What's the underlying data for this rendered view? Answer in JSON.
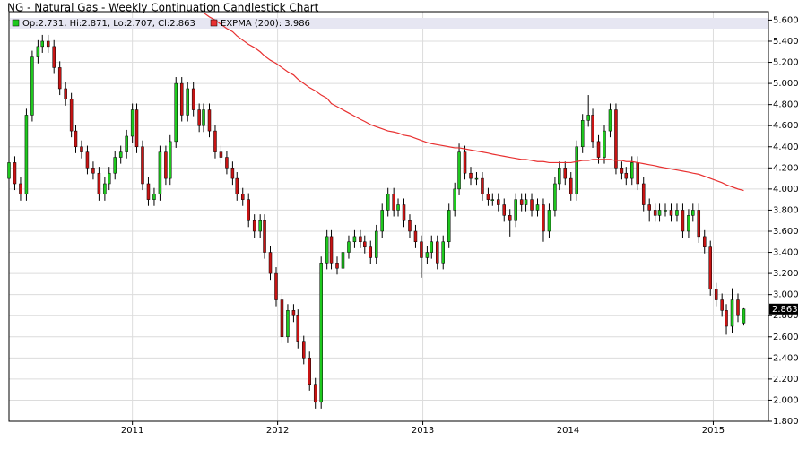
{
  "chart_data": {
    "type": "candlestick",
    "title": "NG - Natural Gas - Weekly Continuation Candlestick Chart",
    "candle_name": "Op:2.731, Hi:2.871, Lo:2.707, Cl:2.863",
    "up_color": "#1ec81e",
    "down_color": "#c81414",
    "x": [
      2010.15,
      2010.19,
      2010.23,
      2010.27,
      2010.31,
      2010.35,
      2010.38,
      2010.42,
      2010.46,
      2010.5,
      2010.54,
      2010.58,
      2010.61,
      2010.65,
      2010.69,
      2010.73,
      2010.77,
      2010.81,
      2010.84,
      2010.88,
      2010.92,
      2010.96,
      2011.0,
      2011.03,
      2011.07,
      2011.11,
      2011.15,
      2011.19,
      2011.23,
      2011.26,
      2011.3,
      2011.34,
      2011.38,
      2011.42,
      2011.46,
      2011.49,
      2011.53,
      2011.57,
      2011.61,
      2011.65,
      2011.69,
      2011.72,
      2011.76,
      2011.8,
      2011.84,
      2011.88,
      2011.91,
      2011.95,
      2011.99,
      2012.03,
      2012.07,
      2012.11,
      2012.14,
      2012.18,
      2012.22,
      2012.26,
      2012.3,
      2012.34,
      2012.37,
      2012.41,
      2012.45,
      2012.49,
      2012.53,
      2012.57,
      2012.6,
      2012.64,
      2012.68,
      2012.72,
      2012.76,
      2012.8,
      2012.83,
      2012.87,
      2012.91,
      2012.95,
      2012.99,
      2013.03,
      2013.06,
      2013.1,
      2013.14,
      2013.18,
      2013.22,
      2013.25,
      2013.29,
      2013.33,
      2013.37,
      2013.41,
      2013.45,
      2013.48,
      2013.52,
      2013.56,
      2013.6,
      2013.64,
      2013.68,
      2013.71,
      2013.75,
      2013.79,
      2013.83,
      2013.87,
      2013.91,
      2013.94,
      2013.98,
      2014.02,
      2014.06,
      2014.1,
      2014.14,
      2014.17,
      2014.21,
      2014.25,
      2014.29,
      2014.33,
      2014.37,
      2014.4,
      2014.44,
      2014.48,
      2014.52,
      2014.56,
      2014.6,
      2014.63,
      2014.67,
      2014.71,
      2014.75,
      2014.79,
      2014.83,
      2014.86,
      2014.9,
      2014.94,
      2014.98,
      2015.02,
      2015.06,
      2015.09,
      2015.13,
      2015.17,
      2015.21
    ],
    "open": [
      4.1,
      4.25,
      4.05,
      3.95,
      4.7,
      5.25,
      5.35,
      5.4,
      5.35,
      5.15,
      4.95,
      4.85,
      4.55,
      4.4,
      4.35,
      4.2,
      4.15,
      3.95,
      4.05,
      4.15,
      4.3,
      4.35,
      4.5,
      4.75,
      4.4,
      4.05,
      3.9,
      3.95,
      4.35,
      4.1,
      4.45,
      5.0,
      4.7,
      4.95,
      4.75,
      4.6,
      4.75,
      4.55,
      4.35,
      4.3,
      4.2,
      4.1,
      3.95,
      3.9,
      3.7,
      3.6,
      3.7,
      3.4,
      3.2,
      2.95,
      2.6,
      2.85,
      2.8,
      2.55,
      2.4,
      2.15,
      1.98,
      3.3,
      3.55,
      3.3,
      3.25,
      3.4,
      3.5,
      3.55,
      3.5,
      3.45,
      3.35,
      3.6,
      3.8,
      3.95,
      3.8,
      3.85,
      3.7,
      3.6,
      3.5,
      3.35,
      3.4,
      3.5,
      3.3,
      3.5,
      3.8,
      4.0,
      4.35,
      4.15,
      4.1,
      4.1,
      3.95,
      3.9,
      3.9,
      3.85,
      3.75,
      3.7,
      3.9,
      3.85,
      3.9,
      3.8,
      3.85,
      3.6,
      3.8,
      4.05,
      4.2,
      4.1,
      3.95,
      4.4,
      4.65,
      4.7,
      4.45,
      4.3,
      4.55,
      4.75,
      4.2,
      4.15,
      4.1,
      4.25,
      4.05,
      3.85,
      3.8,
      3.75,
      3.8,
      3.8,
      3.75,
      3.8,
      3.6,
      3.75,
      3.8,
      3.55,
      3.45,
      3.05,
      2.95,
      2.85,
      2.7,
      2.95,
      2.731
    ],
    "high": [
      4.31,
      4.31,
      4.11,
      4.76,
      5.31,
      5.41,
      5.46,
      5.46,
      5.41,
      5.21,
      5.01,
      4.91,
      4.61,
      4.46,
      4.41,
      4.26,
      4.21,
      4.11,
      4.21,
      4.36,
      4.41,
      4.56,
      4.81,
      4.81,
      4.46,
      4.11,
      4.01,
      4.41,
      4.41,
      4.51,
      5.06,
      5.06,
      5.01,
      5.01,
      4.81,
      4.81,
      4.81,
      4.61,
      4.41,
      4.36,
      4.26,
      4.16,
      4.01,
      3.96,
      3.76,
      3.76,
      3.76,
      3.46,
      3.26,
      3.01,
      2.91,
      2.91,
      2.86,
      2.61,
      2.46,
      2.21,
      3.36,
      3.61,
      3.61,
      3.36,
      3.46,
      3.56,
      3.61,
      3.61,
      3.56,
      3.51,
      3.66,
      3.86,
      4.01,
      4.01,
      3.91,
      3.91,
      3.76,
      3.66,
      3.56,
      3.46,
      3.56,
      3.56,
      3.56,
      3.86,
      4.06,
      4.43,
      4.41,
      4.21,
      4.16,
      4.16,
      4.01,
      3.96,
      3.96,
      3.91,
      3.81,
      3.96,
      3.96,
      3.96,
      3.96,
      3.91,
      3.91,
      3.86,
      4.11,
      4.26,
      4.26,
      4.16,
      4.46,
      4.71,
      4.89,
      4.76,
      4.51,
      4.61,
      4.81,
      4.81,
      4.26,
      4.21,
      4.31,
      4.31,
      4.11,
      3.91,
      3.86,
      3.86,
      3.86,
      3.86,
      3.86,
      3.86,
      3.81,
      3.86,
      3.86,
      3.61,
      3.51,
      3.11,
      3.01,
      2.91,
      3.06,
      3.01,
      2.871
    ],
    "low": [
      4.04,
      3.99,
      3.89,
      3.89,
      4.64,
      5.19,
      5.29,
      5.29,
      5.09,
      4.89,
      4.79,
      4.49,
      4.34,
      4.29,
      4.14,
      4.09,
      3.89,
      3.89,
      3.99,
      4.09,
      4.24,
      4.29,
      4.44,
      4.34,
      3.99,
      3.84,
      3.84,
      3.89,
      4.04,
      4.04,
      4.39,
      4.64,
      4.64,
      4.69,
      4.54,
      4.54,
      4.49,
      4.29,
      4.24,
      4.14,
      4.04,
      3.89,
      3.84,
      3.64,
      3.54,
      3.54,
      3.34,
      3.14,
      2.89,
      2.54,
      2.54,
      2.74,
      2.49,
      2.34,
      2.09,
      1.92,
      1.92,
      3.24,
      3.24,
      3.19,
      3.19,
      3.34,
      3.44,
      3.44,
      3.39,
      3.29,
      3.29,
      3.54,
      3.74,
      3.74,
      3.74,
      3.64,
      3.54,
      3.44,
      3.16,
      3.29,
      3.34,
      3.24,
      3.24,
      3.44,
      3.74,
      3.94,
      4.09,
      4.04,
      4.04,
      3.89,
      3.84,
      3.84,
      3.79,
      3.69,
      3.55,
      3.64,
      3.79,
      3.79,
      3.74,
      3.74,
      3.5,
      3.54,
      3.74,
      3.99,
      4.04,
      3.89,
      3.89,
      4.34,
      4.59,
      4.39,
      4.24,
      4.24,
      4.49,
      4.14,
      4.09,
      4.04,
      4.04,
      3.99,
      3.79,
      3.69,
      3.69,
      3.69,
      3.74,
      3.69,
      3.69,
      3.54,
      3.54,
      3.69,
      3.49,
      3.39,
      2.99,
      2.89,
      2.79,
      2.62,
      2.64,
      2.74,
      2.707
    ],
    "close": [
      4.25,
      4.05,
      3.95,
      4.7,
      5.25,
      5.35,
      5.4,
      5.35,
      5.15,
      4.95,
      4.85,
      4.55,
      4.4,
      4.35,
      4.2,
      4.15,
      3.95,
      4.05,
      4.15,
      4.3,
      4.35,
      4.5,
      4.75,
      4.4,
      4.05,
      3.9,
      3.95,
      4.35,
      4.1,
      4.45,
      5.0,
      4.7,
      4.95,
      4.75,
      4.6,
      4.75,
      4.55,
      4.35,
      4.3,
      4.2,
      4.1,
      3.95,
      3.9,
      3.7,
      3.6,
      3.7,
      3.4,
      3.2,
      2.95,
      2.6,
      2.85,
      2.8,
      2.55,
      2.4,
      2.15,
      1.98,
      3.3,
      3.55,
      3.3,
      3.25,
      3.4,
      3.5,
      3.55,
      3.5,
      3.45,
      3.35,
      3.6,
      3.8,
      3.95,
      3.8,
      3.85,
      3.7,
      3.6,
      3.5,
      3.35,
      3.4,
      3.5,
      3.3,
      3.5,
      3.8,
      4.0,
      4.35,
      4.15,
      4.1,
      4.1,
      3.95,
      3.9,
      3.9,
      3.85,
      3.75,
      3.7,
      3.9,
      3.85,
      3.9,
      3.8,
      3.85,
      3.6,
      3.8,
      4.05,
      4.2,
      4.1,
      3.95,
      4.4,
      4.65,
      4.7,
      4.45,
      4.3,
      4.55,
      4.75,
      4.2,
      4.15,
      4.1,
      4.25,
      4.05,
      3.85,
      3.8,
      3.75,
      3.8,
      3.8,
      3.75,
      3.8,
      3.6,
      3.75,
      3.8,
      3.55,
      3.45,
      3.05,
      2.95,
      2.85,
      2.7,
      2.95,
      2.8,
      2.863
    ],
    "series": [
      {
        "name": "EXPMA (200): 3.986",
        "color": "#e83030",
        "values": [
          null,
          null,
          null,
          null,
          null,
          null,
          null,
          null,
          null,
          null,
          null,
          null,
          null,
          null,
          null,
          null,
          null,
          null,
          null,
          null,
          null,
          null,
          null,
          null,
          null,
          null,
          null,
          null,
          null,
          null,
          null,
          null,
          null,
          null,
          null,
          5.67,
          5.63,
          5.6,
          5.56,
          5.52,
          5.49,
          5.45,
          5.41,
          5.37,
          5.34,
          5.3,
          5.26,
          5.22,
          5.19,
          5.15,
          5.11,
          5.08,
          5.04,
          5.0,
          4.96,
          4.93,
          4.89,
          4.86,
          4.81,
          4.78,
          4.75,
          4.72,
          4.69,
          4.66,
          4.64,
          4.61,
          4.59,
          4.57,
          4.55,
          4.54,
          4.53,
          4.51,
          4.5,
          4.48,
          4.46,
          4.44,
          4.43,
          4.42,
          4.41,
          4.4,
          4.39,
          4.39,
          4.38,
          4.37,
          4.36,
          4.35,
          4.34,
          4.33,
          4.32,
          4.31,
          4.3,
          4.29,
          4.28,
          4.28,
          4.27,
          4.26,
          4.26,
          4.25,
          4.25,
          4.25,
          4.25,
          4.25,
          4.26,
          4.27,
          4.27,
          4.28,
          4.28,
          4.28,
          4.28,
          4.27,
          4.27,
          4.26,
          4.26,
          4.25,
          4.24,
          4.23,
          4.22,
          4.21,
          4.2,
          4.19,
          4.18,
          4.17,
          4.16,
          4.15,
          4.14,
          4.12,
          4.1,
          4.08,
          4.06,
          4.04,
          4.02,
          4.0,
          3.986
        ]
      }
    ],
    "xlim": [
      2010.15,
      2015.38
    ],
    "xticks": [
      2011,
      2012,
      2013,
      2014,
      2015
    ],
    "ylim": [
      1.8,
      5.68
    ],
    "yticks": [
      {
        "value": 1.8,
        "label": "1.800"
      },
      {
        "value": 2.0,
        "label": "2.000"
      },
      {
        "value": 2.2,
        "label": "2.200"
      },
      {
        "value": 2.4,
        "label": "2.400"
      },
      {
        "value": 2.6,
        "label": "2.600"
      },
      {
        "value": 2.8,
        "label": "2.800"
      },
      {
        "value": 3.0,
        "label": "3.000"
      },
      {
        "value": 3.2,
        "label": "3.200"
      },
      {
        "value": 3.4,
        "label": "3.400"
      },
      {
        "value": 3.6,
        "label": "3.600"
      },
      {
        "value": 3.8,
        "label": "3.800"
      },
      {
        "value": 4.0,
        "label": "4.000"
      },
      {
        "value": 4.2,
        "label": "4.200"
      },
      {
        "value": 4.4,
        "label": "4.400"
      },
      {
        "value": 4.6,
        "label": "4.600"
      },
      {
        "value": 4.8,
        "label": "4.800"
      },
      {
        "value": 5.0,
        "label": "5.000"
      },
      {
        "value": 5.2,
        "label": "5.200"
      },
      {
        "value": 5.4,
        "label": "5.400"
      },
      {
        "value": 5.6,
        "label": "5.600"
      }
    ],
    "grid": true
  }
}
